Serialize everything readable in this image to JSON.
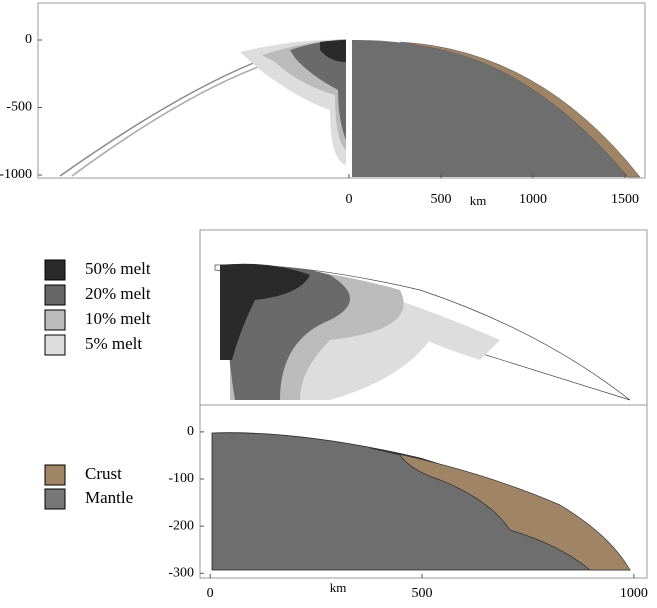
{
  "top_panel": {
    "xlabel": "km",
    "xlim": [
      -1690,
      1609
    ],
    "ylim": [
      274,
      -1022
    ],
    "xticks": [
      0,
      500,
      1000,
      1500
    ],
    "yticks": [
      0,
      -500,
      -1000
    ]
  },
  "melt_legend": [
    "50% melt",
    "20% melt",
    "10% melt",
    "5% melt"
  ],
  "material_legend": [
    "Crust",
    "Mantle"
  ],
  "bottom_panel": {
    "xlabel": "km",
    "xlim": [
      -24,
      1031
    ],
    "ylim": [
      57,
      -310
    ],
    "xticks": [
      0,
      500,
      1000
    ],
    "yticks": [
      0,
      -100,
      -200,
      -300
    ]
  }
}
